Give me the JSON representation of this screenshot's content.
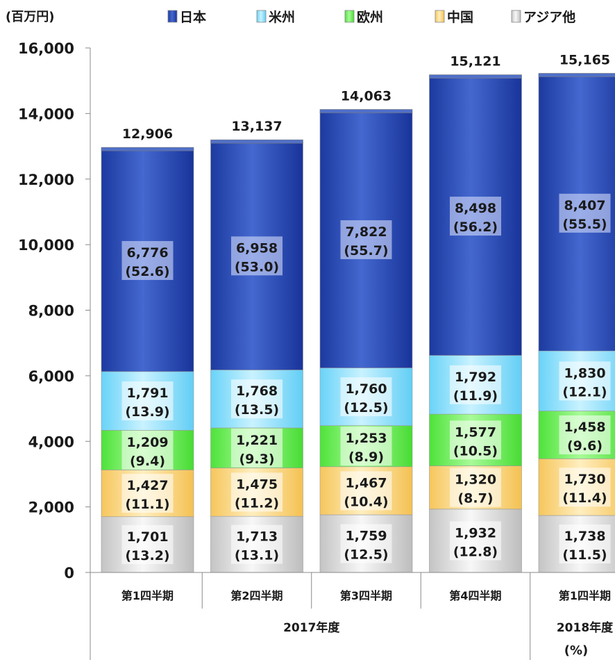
{
  "chart_data": {
    "type": "bar",
    "stacked": true,
    "unit_label": "(百万円)",
    "percent_label": "(%)",
    "categories": [
      "第1四半期",
      "第2四半期",
      "第3四半期",
      "第4四半期",
      "第1四半期"
    ],
    "groups": [
      {
        "label": "2017年度",
        "span": [
          0,
          3
        ]
      },
      {
        "label": "2018年度",
        "span": [
          4,
          4
        ]
      }
    ],
    "ylim": [
      0,
      16000
    ],
    "yticks": [
      "0",
      "2,000",
      "4,000",
      "6,000",
      "8,000",
      "10,000",
      "12,000",
      "14,000",
      "16,000"
    ],
    "ytick_values": [
      0,
      2000,
      4000,
      6000,
      8000,
      10000,
      12000,
      14000,
      16000
    ],
    "legend_position": "top",
    "totals": [
      12906,
      13137,
      14063,
      15121,
      15165
    ],
    "totals_text": [
      "12,906",
      "13,137",
      "14,063",
      "15,121",
      "15,165"
    ],
    "series": [
      {
        "name": "アジア他",
        "color": "#cfcfcf",
        "values": [
          1701,
          1713,
          1759,
          1932,
          1738
        ],
        "values_text": [
          "1,701",
          "1,713",
          "1,759",
          "1,932",
          "1,738"
        ],
        "percents_text": [
          "(13.2)",
          "(13.1)",
          "(12.5)",
          "(12.8)",
          "(11.5)"
        ]
      },
      {
        "name": "中国",
        "color": "#fcd98a",
        "values": [
          1427,
          1475,
          1467,
          1320,
          1730
        ],
        "values_text": [
          "1,427",
          "1,475",
          "1,467",
          "1,320",
          "1,730"
        ],
        "percents_text": [
          "(11.1)",
          "(11.2)",
          "(10.4)",
          "(8.7)",
          "(11.4)"
        ]
      },
      {
        "name": "欧州",
        "color": "#6ff05a",
        "values": [
          1209,
          1221,
          1253,
          1577,
          1458
        ],
        "values_text": [
          "1,209",
          "1,221",
          "1,253",
          "1,577",
          "1,458"
        ],
        "percents_text": [
          "(9.4)",
          "(9.3)",
          "(8.9)",
          "(10.5)",
          "(9.6)"
        ]
      },
      {
        "name": "米州",
        "color": "#8fe0fb",
        "values": [
          1791,
          1768,
          1760,
          1792,
          1830
        ],
        "values_text": [
          "1,791",
          "1,768",
          "1,760",
          "1,792",
          "1,830"
        ],
        "percents_text": [
          "(13.9)",
          "(13.5)",
          "(12.5)",
          "(11.9)",
          "(12.1)"
        ]
      },
      {
        "name": "日本",
        "color": "#2d4fb6",
        "values": [
          6776,
          6958,
          7822,
          8498,
          8407
        ],
        "values_text": [
          "6,776",
          "6,958",
          "7,822",
          "8,498",
          "8,407"
        ],
        "percents_text": [
          "(52.6)",
          "(53.0)",
          "(55.7)",
          "(56.2)",
          "(55.5)"
        ]
      }
    ],
    "legend_order": [
      "日本",
      "米州",
      "欧州",
      "中国",
      "アジア他"
    ]
  }
}
